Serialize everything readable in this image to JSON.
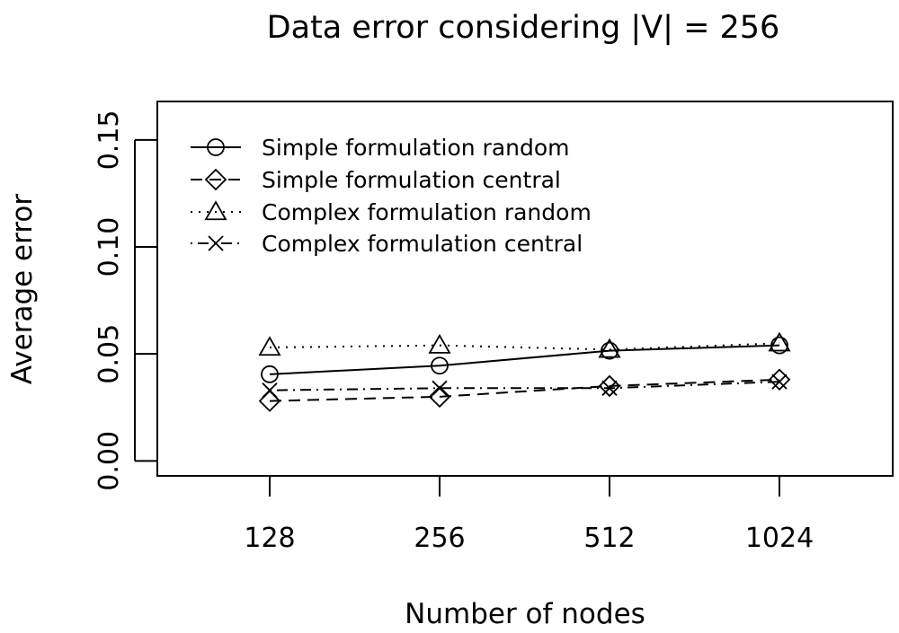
{
  "chart_data": {
    "type": "line",
    "title": "Data error considering |V| = 256",
    "xlabel": "Number of nodes",
    "ylabel": "Average error",
    "categories": [
      "128",
      "256",
      "512",
      "1024"
    ],
    "ylim": [
      -0.007,
      0.168
    ],
    "yticks": [
      0.0,
      0.05,
      0.1,
      0.15
    ],
    "ytick_labels": [
      "0.00",
      "0.05",
      "0.10",
      "0.15"
    ],
    "grid": false,
    "legend_position": "top-left",
    "series": [
      {
        "name": "Simple formulation random",
        "values": [
          0.0405,
          0.0445,
          0.0515,
          0.054
        ],
        "marker": "circle",
        "line": "solid"
      },
      {
        "name": "Simple formulation central",
        "values": [
          0.028,
          0.03,
          0.035,
          0.038
        ],
        "marker": "diamond",
        "line": "dashed"
      },
      {
        "name": "Complex formulation random",
        "values": [
          0.053,
          0.054,
          0.052,
          0.055
        ],
        "marker": "triangle",
        "line": "dotted"
      },
      {
        "name": "Complex formulation central",
        "values": [
          0.033,
          0.034,
          0.034,
          0.037
        ],
        "marker": "x",
        "line": "dashdot"
      }
    ]
  }
}
